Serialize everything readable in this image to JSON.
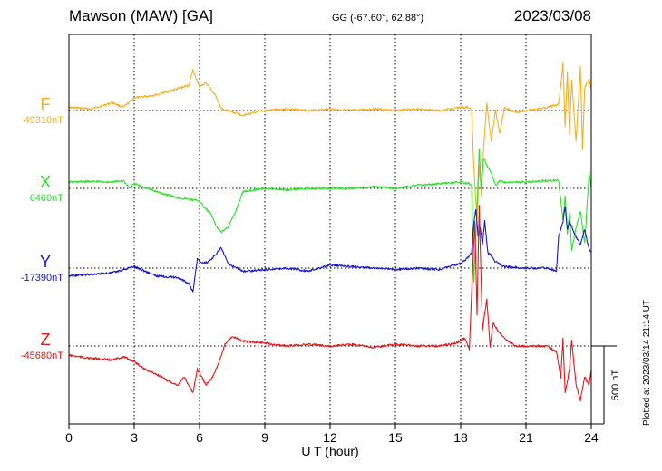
{
  "header": {
    "station": "Mawson (MAW)  [GA]",
    "coords": "GG (-67.60°,  62.88°)",
    "date": "2023/03/08"
  },
  "footer": {
    "plotted": "Plotted at 2023/03/14 21:14 UT"
  },
  "colors": {
    "F": "#F5B021",
    "X": "#2EE02E",
    "Y": "#1515CC",
    "Z": "#E01A1A",
    "grid": "#000000"
  },
  "chart_data": {
    "type": "line",
    "xlabel": "U T (hour)",
    "xlim": [
      0,
      24
    ],
    "xticks": [
      0,
      3,
      6,
      9,
      12,
      15,
      18,
      21,
      24
    ],
    "scale_bar": {
      "value_nT": 500,
      "label": "500 nT"
    },
    "series": [
      {
        "name": "F",
        "baseline_label": "49310nT",
        "baseline_nT": 49310,
        "points": [
          [
            0,
            -20
          ],
          [
            0.5,
            -15
          ],
          [
            1,
            -10
          ],
          [
            1.5,
            -30
          ],
          [
            2,
            -50
          ],
          [
            2.5,
            -20
          ],
          [
            3,
            -80
          ],
          [
            3.5,
            -90
          ],
          [
            4,
            -100
          ],
          [
            4.5,
            -120
          ],
          [
            5,
            -140
          ],
          [
            5.5,
            -160
          ],
          [
            5.7,
            -260
          ],
          [
            6,
            -150
          ],
          [
            6.3,
            -180
          ],
          [
            6.6,
            -120
          ],
          [
            6.8,
            -80
          ],
          [
            7,
            -10
          ],
          [
            7.5,
            10
          ],
          [
            8,
            30
          ],
          [
            9,
            0
          ],
          [
            10,
            -10
          ],
          [
            11,
            0
          ],
          [
            12,
            -10
          ],
          [
            13,
            0
          ],
          [
            14,
            -10
          ],
          [
            15,
            0
          ],
          [
            16,
            -10
          ],
          [
            17,
            0
          ],
          [
            18,
            -20
          ],
          [
            18.4,
            -20
          ],
          [
            18.5,
            0
          ],
          [
            18.6,
            350
          ],
          [
            18.75,
            700
          ],
          [
            18.85,
            350
          ],
          [
            18.95,
            550
          ],
          [
            19.05,
            250
          ],
          [
            19.2,
            -50
          ],
          [
            19.4,
            200
          ],
          [
            19.6,
            0
          ],
          [
            19.8,
            150
          ],
          [
            20,
            -20
          ],
          [
            20.5,
            10
          ],
          [
            21,
            0
          ],
          [
            21.5,
            -10
          ],
          [
            22,
            -20
          ],
          [
            22.5,
            -40
          ],
          [
            22.7,
            -300
          ],
          [
            22.8,
            100
          ],
          [
            22.9,
            -250
          ],
          [
            23,
            150
          ],
          [
            23.1,
            -200
          ],
          [
            23.3,
            200
          ],
          [
            23.5,
            -280
          ],
          [
            23.6,
            250
          ],
          [
            23.7,
            -150
          ],
          [
            23.9,
            -200
          ],
          [
            24,
            -130
          ]
        ]
      },
      {
        "name": "X",
        "baseline_label": "6460nT",
        "baseline_nT": 6460,
        "points": [
          [
            0,
            -40
          ],
          [
            1,
            -45
          ],
          [
            2,
            -40
          ],
          [
            2.5,
            -50
          ],
          [
            2.8,
            0
          ],
          [
            3,
            -30
          ],
          [
            4,
            20
          ],
          [
            4.5,
            40
          ],
          [
            5,
            60
          ],
          [
            5.5,
            70
          ],
          [
            6,
            80
          ],
          [
            6.2,
            120
          ],
          [
            6.5,
            160
          ],
          [
            6.8,
            250
          ],
          [
            7,
            280
          ],
          [
            7.3,
            250
          ],
          [
            7.6,
            170
          ],
          [
            8,
            20
          ],
          [
            9,
            0
          ],
          [
            10,
            10
          ],
          [
            11,
            0
          ],
          [
            12,
            0
          ],
          [
            13,
            0
          ],
          [
            14,
            -10
          ],
          [
            15,
            0
          ],
          [
            16,
            -20
          ],
          [
            17,
            -30
          ],
          [
            18,
            -40
          ],
          [
            18.4,
            -30
          ],
          [
            18.5,
            -20
          ],
          [
            18.6,
            600
          ],
          [
            18.7,
            300
          ],
          [
            18.85,
            -250
          ],
          [
            18.95,
            0
          ],
          [
            19.05,
            -200
          ],
          [
            19.2,
            -150
          ],
          [
            19.4,
            -100
          ],
          [
            19.6,
            -20
          ],
          [
            19.8,
            -50
          ],
          [
            20,
            -40
          ],
          [
            21,
            -40
          ],
          [
            22,
            -50
          ],
          [
            22.3,
            -50
          ],
          [
            22.5,
            -50
          ],
          [
            22.7,
            200
          ],
          [
            22.8,
            50
          ],
          [
            22.9,
            300
          ],
          [
            23,
            150
          ],
          [
            23.1,
            400
          ],
          [
            23.3,
            250
          ],
          [
            23.5,
            150
          ],
          [
            23.7,
            350
          ],
          [
            23.9,
            -100
          ],
          [
            24,
            0
          ]
        ]
      },
      {
        "name": "Y",
        "baseline_label": "-17390nT",
        "baseline_nT": -17390,
        "points": [
          [
            0,
            50
          ],
          [
            1,
            40
          ],
          [
            2,
            30
          ],
          [
            3,
            -10
          ],
          [
            4,
            50
          ],
          [
            5,
            60
          ],
          [
            5.5,
            100
          ],
          [
            5.7,
            150
          ],
          [
            5.9,
            -60
          ],
          [
            6.1,
            -30
          ],
          [
            6.4,
            -40
          ],
          [
            6.7,
            -80
          ],
          [
            7,
            -130
          ],
          [
            7.3,
            -30
          ],
          [
            7.6,
            -10
          ],
          [
            8,
            20
          ],
          [
            9,
            10
          ],
          [
            10,
            0
          ],
          [
            11,
            20
          ],
          [
            12,
            -20
          ],
          [
            13,
            -10
          ],
          [
            14,
            0
          ],
          [
            15,
            10
          ],
          [
            16,
            0
          ],
          [
            17,
            10
          ],
          [
            18,
            -30
          ],
          [
            18.2,
            -50
          ],
          [
            18.4,
            -80
          ],
          [
            18.5,
            -100
          ],
          [
            18.6,
            -280
          ],
          [
            18.7,
            -380
          ],
          [
            18.8,
            -200
          ],
          [
            18.9,
            -260
          ],
          [
            19.0,
            -150
          ],
          [
            19.1,
            -300
          ],
          [
            19.25,
            -100
          ],
          [
            19.4,
            -80
          ],
          [
            19.6,
            -40
          ],
          [
            20,
            -10
          ],
          [
            21,
            0
          ],
          [
            22,
            0
          ],
          [
            22.4,
            20
          ],
          [
            22.5,
            -200
          ],
          [
            22.7,
            -300
          ],
          [
            22.8,
            -400
          ],
          [
            22.9,
            -250
          ],
          [
            23,
            -300
          ],
          [
            23.3,
            -200
          ],
          [
            23.5,
            -150
          ],
          [
            23.7,
            -250
          ],
          [
            23.9,
            -120
          ],
          [
            24,
            -100
          ]
        ]
      },
      {
        "name": "Z",
        "baseline_label": "-45680nT",
        "baseline_nT": -45680,
        "points": [
          [
            0,
            60
          ],
          [
            1,
            80
          ],
          [
            2,
            90
          ],
          [
            2.5,
            70
          ],
          [
            3,
            100
          ],
          [
            3.5,
            150
          ],
          [
            4,
            180
          ],
          [
            4.5,
            220
          ],
          [
            5,
            250
          ],
          [
            5.3,
            200
          ],
          [
            5.5,
            250
          ],
          [
            5.7,
            300
          ],
          [
            5.9,
            150
          ],
          [
            6.1,
            200
          ],
          [
            6.3,
            250
          ],
          [
            6.6,
            200
          ],
          [
            6.9,
            100
          ],
          [
            7.2,
            -20
          ],
          [
            7.5,
            -60
          ],
          [
            8,
            -30
          ],
          [
            9,
            -20
          ],
          [
            10,
            0
          ],
          [
            11,
            -10
          ],
          [
            12,
            0
          ],
          [
            13,
            -10
          ],
          [
            14,
            10
          ],
          [
            15,
            -10
          ],
          [
            16,
            0
          ],
          [
            17,
            0
          ],
          [
            17.8,
            -20
          ],
          [
            18.2,
            -50
          ],
          [
            18.4,
            20
          ],
          [
            18.55,
            -500
          ],
          [
            18.65,
            -800
          ],
          [
            18.75,
            -200
          ],
          [
            18.85,
            -900
          ],
          [
            19,
            -100
          ],
          [
            19.2,
            -300
          ],
          [
            19.35,
            0
          ],
          [
            19.5,
            -150
          ],
          [
            19.7,
            -100
          ],
          [
            20,
            -50
          ],
          [
            20.5,
            0
          ],
          [
            21,
            0
          ],
          [
            22,
            0
          ],
          [
            22.4,
            40
          ],
          [
            22.6,
            200
          ],
          [
            22.7,
            -50
          ],
          [
            22.8,
            300
          ],
          [
            23,
            150
          ],
          [
            23.1,
            -40
          ],
          [
            23.3,
            250
          ],
          [
            23.5,
            350
          ],
          [
            23.7,
            200
          ],
          [
            23.9,
            250
          ],
          [
            24,
            150
          ]
        ]
      }
    ]
  }
}
